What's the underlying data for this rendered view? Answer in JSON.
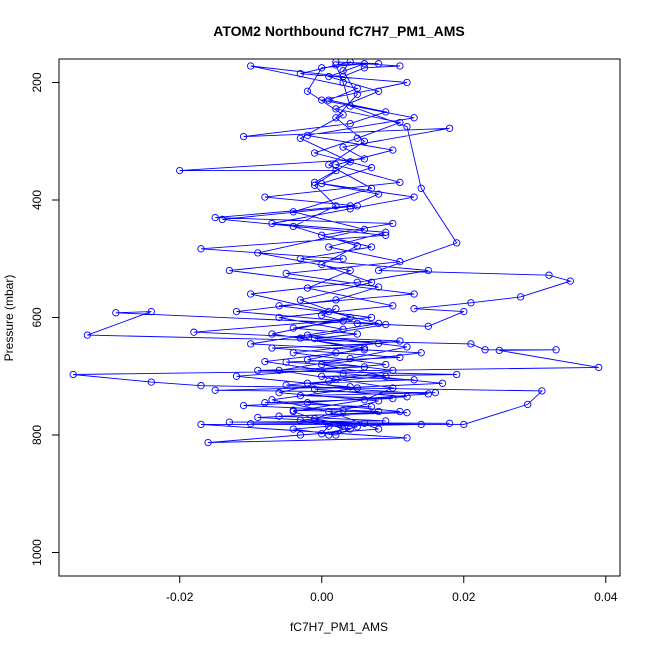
{
  "chart_data": {
    "type": "line",
    "title": "ATOM2 Northbound fC7H7_PM1_AMS",
    "xlabel": "fC7H7_PM1_AMS",
    "ylabel": "Pressure (mbar)",
    "xlim": [
      -0.037,
      0.042
    ],
    "ylim": [
      1040,
      160
    ],
    "y_reversed": true,
    "x_ticks": [
      -0.02,
      0.0,
      0.02,
      0.04
    ],
    "x_tick_labels": [
      "-0.02",
      "0.00",
      "0.02",
      "0.04"
    ],
    "y_ticks": [
      200,
      400,
      600,
      800,
      1000
    ],
    "y_tick_labels": [
      "200",
      "400",
      "600",
      "800",
      "1000"
    ],
    "grid": false,
    "legend": "none",
    "series_color": "#0000ff",
    "markers": "open-circle",
    "series": [
      {
        "values": [
          {
            "x": 0.001,
            "y": 800
          },
          {
            "x": 0.003,
            "y": 790
          },
          {
            "x": -0.004,
            "y": 760
          },
          {
            "x": 0.006,
            "y": 740
          },
          {
            "x": 0.01,
            "y": 720
          },
          {
            "x": 0.002,
            "y": 705
          },
          {
            "x": -0.006,
            "y": 690
          },
          {
            "x": 0.004,
            "y": 670
          },
          {
            "x": 0.012,
            "y": 650
          },
          {
            "x": -0.002,
            "y": 630
          },
          {
            "x": 0.008,
            "y": 610
          },
          {
            "x": 0.001,
            "y": 590
          },
          {
            "x": -0.01,
            "y": 560
          },
          {
            "x": 0.005,
            "y": 540
          },
          {
            "x": 0.015,
            "y": 520
          },
          {
            "x": -0.003,
            "y": 500
          },
          {
            "x": 0.007,
            "y": 480
          },
          {
            "x": 0.0,
            "y": 460
          },
          {
            "x": 0.01,
            "y": 440
          },
          {
            "x": -0.015,
            "y": 430
          },
          {
            "x": 0.004,
            "y": 410
          },
          {
            "x": 0.008,
            "y": 390
          },
          {
            "x": -0.001,
            "y": 370
          },
          {
            "x": 0.002,
            "y": 350
          },
          {
            "x": -0.02,
            "y": 350
          },
          {
            "x": 0.006,
            "y": 330
          },
          {
            "x": 0.003,
            "y": 310
          },
          {
            "x": 0.018,
            "y": 278
          },
          {
            "x": -0.011,
            "y": 292
          },
          {
            "x": 0.004,
            "y": 270
          },
          {
            "x": 0.009,
            "y": 250
          },
          {
            "x": 0.001,
            "y": 230
          },
          {
            "x": 0.005,
            "y": 210
          },
          {
            "x": -0.01,
            "y": 172
          },
          {
            "x": 0.003,
            "y": 190
          },
          {
            "x": 0.006,
            "y": 175
          },
          {
            "x": 0.011,
            "y": 172
          },
          {
            "x": 0.002,
            "y": 165
          },
          {
            "x": 0.008,
            "y": 168
          },
          {
            "x": 0.002,
            "y": 170
          },
          {
            "x": 0.003,
            "y": 200
          },
          {
            "x": 0.004,
            "y": 240
          },
          {
            "x": 0.012,
            "y": 275
          },
          {
            "x": 0.014,
            "y": 380
          },
          {
            "x": 0.019,
            "y": 473
          },
          {
            "x": 0.008,
            "y": 520
          },
          {
            "x": 0.032,
            "y": 528
          },
          {
            "x": 0.035,
            "y": 538
          },
          {
            "x": 0.028,
            "y": 565
          },
          {
            "x": 0.021,
            "y": 575
          },
          {
            "x": 0.013,
            "y": 585
          },
          {
            "x": 0.02,
            "y": 590
          },
          {
            "x": 0.015,
            "y": 615
          },
          {
            "x": 0.005,
            "y": 610
          },
          {
            "x": -0.029,
            "y": 592
          },
          {
            "x": -0.024,
            "y": 590
          },
          {
            "x": -0.033,
            "y": 630
          },
          {
            "x": 0.021,
            "y": 645
          },
          {
            "x": 0.023,
            "y": 655
          },
          {
            "x": 0.033,
            "y": 655
          },
          {
            "x": 0.025,
            "y": 656
          },
          {
            "x": 0.039,
            "y": 685
          },
          {
            "x": -0.035,
            "y": 697
          },
          {
            "x": -0.024,
            "y": 710
          },
          {
            "x": -0.017,
            "y": 716
          },
          {
            "x": 0.031,
            "y": 725
          },
          {
            "x": 0.029,
            "y": 748
          },
          {
            "x": 0.02,
            "y": 782
          },
          {
            "x": -0.017,
            "y": 782
          },
          {
            "x": 0.012,
            "y": 805
          },
          {
            "x": -0.016,
            "y": 813
          },
          {
            "x": -0.003,
            "y": 800
          },
          {
            "x": 0.008,
            "y": 790
          },
          {
            "x": 0.001,
            "y": 760
          },
          {
            "x": -0.007,
            "y": 740
          },
          {
            "x": 0.005,
            "y": 720
          },
          {
            "x": -0.012,
            "y": 700
          },
          {
            "x": 0.009,
            "y": 680
          },
          {
            "x": -0.004,
            "y": 660
          },
          {
            "x": 0.011,
            "y": 640
          },
          {
            "x": -0.018,
            "y": 625
          },
          {
            "x": 0.007,
            "y": 600
          },
          {
            "x": -0.006,
            "y": 580
          },
          {
            "x": 0.013,
            "y": 560
          },
          {
            "x": -0.013,
            "y": 520
          },
          {
            "x": 0.003,
            "y": 500
          },
          {
            "x": -0.017,
            "y": 483
          },
          {
            "x": 0.009,
            "y": 460
          },
          {
            "x": -0.014,
            "y": 433
          },
          {
            "x": 0.005,
            "y": 410
          },
          {
            "x": -0.008,
            "y": 395
          },
          {
            "x": 0.011,
            "y": 370
          },
          {
            "x": 0.002,
            "y": 340
          },
          {
            "x": 0.01,
            "y": 315
          },
          {
            "x": -0.002,
            "y": 290
          },
          {
            "x": 0.013,
            "y": 260
          },
          {
            "x": 0.0,
            "y": 230
          },
          {
            "x": 0.012,
            "y": 200
          },
          {
            "x": -0.003,
            "y": 185
          },
          {
            "x": 0.004,
            "y": 165
          },
          {
            "x": 0.003,
            "y": 180
          },
          {
            "x": 0.005,
            "y": 220
          },
          {
            "x": 0.002,
            "y": 260
          },
          {
            "x": 0.006,
            "y": 300
          },
          {
            "x": 0.001,
            "y": 340
          },
          {
            "x": 0.007,
            "y": 380
          },
          {
            "x": -0.004,
            "y": 420
          },
          {
            "x": 0.006,
            "y": 450
          },
          {
            "x": -0.009,
            "y": 490
          },
          {
            "x": 0.004,
            "y": 520
          },
          {
            "x": -0.002,
            "y": 550
          },
          {
            "x": 0.01,
            "y": 580
          },
          {
            "x": -0.006,
            "y": 600
          },
          {
            "x": 0.003,
            "y": 620
          },
          {
            "x": -0.01,
            "y": 645
          },
          {
            "x": 0.014,
            "y": 660
          },
          {
            "x": 0.0,
            "y": 680
          },
          {
            "x": 0.009,
            "y": 700
          },
          {
            "x": -0.005,
            "y": 715
          },
          {
            "x": 0.015,
            "y": 730
          },
          {
            "x": -0.002,
            "y": 745
          },
          {
            "x": 0.011,
            "y": 760
          },
          {
            "x": -0.009,
            "y": 770
          },
          {
            "x": 0.006,
            "y": 780
          },
          {
            "x": -0.004,
            "y": 790
          },
          {
            "x": 0.002,
            "y": 800
          },
          {
            "x": 0.004,
            "y": 790
          },
          {
            "x": -0.003,
            "y": 775
          },
          {
            "x": 0.008,
            "y": 760
          },
          {
            "x": -0.011,
            "y": 750
          },
          {
            "x": 0.012,
            "y": 735
          },
          {
            "x": -0.001,
            "y": 722
          },
          {
            "x": 0.017,
            "y": 712
          },
          {
            "x": 0.003,
            "y": 695
          },
          {
            "x": -0.008,
            "y": 675
          },
          {
            "x": 0.006,
            "y": 655
          },
          {
            "x": -0.003,
            "y": 635
          },
          {
            "x": 0.009,
            "y": 612
          },
          {
            "x": -0.012,
            "y": 590
          },
          {
            "x": 0.002,
            "y": 570
          },
          {
            "x": 0.008,
            "y": 548
          },
          {
            "x": -0.005,
            "y": 525
          },
          {
            "x": 0.011,
            "y": 505
          },
          {
            "x": 0.001,
            "y": 480
          },
          {
            "x": 0.009,
            "y": 455
          },
          {
            "x": -0.007,
            "y": 440
          },
          {
            "x": 0.004,
            "y": 415
          },
          {
            "x": 0.013,
            "y": 395
          },
          {
            "x": 0.0,
            "y": 372
          },
          {
            "x": 0.007,
            "y": 345
          },
          {
            "x": -0.001,
            "y": 320
          },
          {
            "x": 0.005,
            "y": 295
          },
          {
            "x": 0.011,
            "y": 268
          },
          {
            "x": 0.002,
            "y": 245
          },
          {
            "x": 0.008,
            "y": 215
          },
          {
            "x": 0.001,
            "y": 190
          },
          {
            "x": 0.006,
            "y": 168
          },
          {
            "x": 0.0,
            "y": 175
          },
          {
            "x": -0.002,
            "y": 215
          },
          {
            "x": 0.003,
            "y": 255
          },
          {
            "x": -0.003,
            "y": 295
          },
          {
            "x": 0.004,
            "y": 335
          },
          {
            "x": -0.001,
            "y": 375
          },
          {
            "x": 0.002,
            "y": 410
          },
          {
            "x": -0.004,
            "y": 445
          },
          {
            "x": 0.005,
            "y": 478
          },
          {
            "x": 0.0,
            "y": 510
          },
          {
            "x": 0.007,
            "y": 540
          },
          {
            "x": -0.003,
            "y": 570
          },
          {
            "x": 0.004,
            "y": 600
          },
          {
            "x": -0.007,
            "y": 628
          },
          {
            "x": 0.006,
            "y": 652
          },
          {
            "x": -0.002,
            "y": 672
          },
          {
            "x": 0.01,
            "y": 690
          },
          {
            "x": 0.001,
            "y": 708
          },
          {
            "x": -0.006,
            "y": 728
          },
          {
            "x": 0.008,
            "y": 742
          },
          {
            "x": 0.003,
            "y": 758
          },
          {
            "x": -0.001,
            "y": 772
          },
          {
            "x": 0.005,
            "y": 786
          },
          {
            "x": 0.0,
            "y": 798
          },
          {
            "x": 0.001,
            "y": 785
          },
          {
            "x": 0.014,
            "y": 782
          },
          {
            "x": -0.01,
            "y": 781
          },
          {
            "x": 0.018,
            "y": 780
          },
          {
            "x": -0.013,
            "y": 778
          },
          {
            "x": 0.009,
            "y": 776
          },
          {
            "x": -0.006,
            "y": 768
          },
          {
            "x": 0.012,
            "y": 762
          },
          {
            "x": -0.004,
            "y": 758
          },
          {
            "x": 0.007,
            "y": 752
          },
          {
            "x": -0.008,
            "y": 745
          },
          {
            "x": 0.01,
            "y": 738
          },
          {
            "x": -0.003,
            "y": 733
          },
          {
            "x": 0.016,
            "y": 728
          },
          {
            "x": -0.015,
            "y": 724
          },
          {
            "x": 0.004,
            "y": 718
          },
          {
            "x": -0.002,
            "y": 712
          },
          {
            "x": 0.013,
            "y": 706
          },
          {
            "x": 0.0,
            "y": 700
          },
          {
            "x": 0.019,
            "y": 697
          },
          {
            "x": -0.009,
            "y": 690
          },
          {
            "x": 0.006,
            "y": 684
          },
          {
            "x": -0.005,
            "y": 676
          },
          {
            "x": 0.011,
            "y": 668
          },
          {
            "x": 0.002,
            "y": 660
          },
          {
            "x": -0.007,
            "y": 652
          },
          {
            "x": 0.008,
            "y": 644
          },
          {
            "x": -0.001,
            "y": 636
          },
          {
            "x": 0.005,
            "y": 628
          },
          {
            "x": -0.004,
            "y": 618
          },
          {
            "x": 0.003,
            "y": 606
          },
          {
            "x": 0.0,
            "y": 596
          },
          {
            "x": 0.002,
            "y": 585
          }
        ]
      }
    ]
  }
}
